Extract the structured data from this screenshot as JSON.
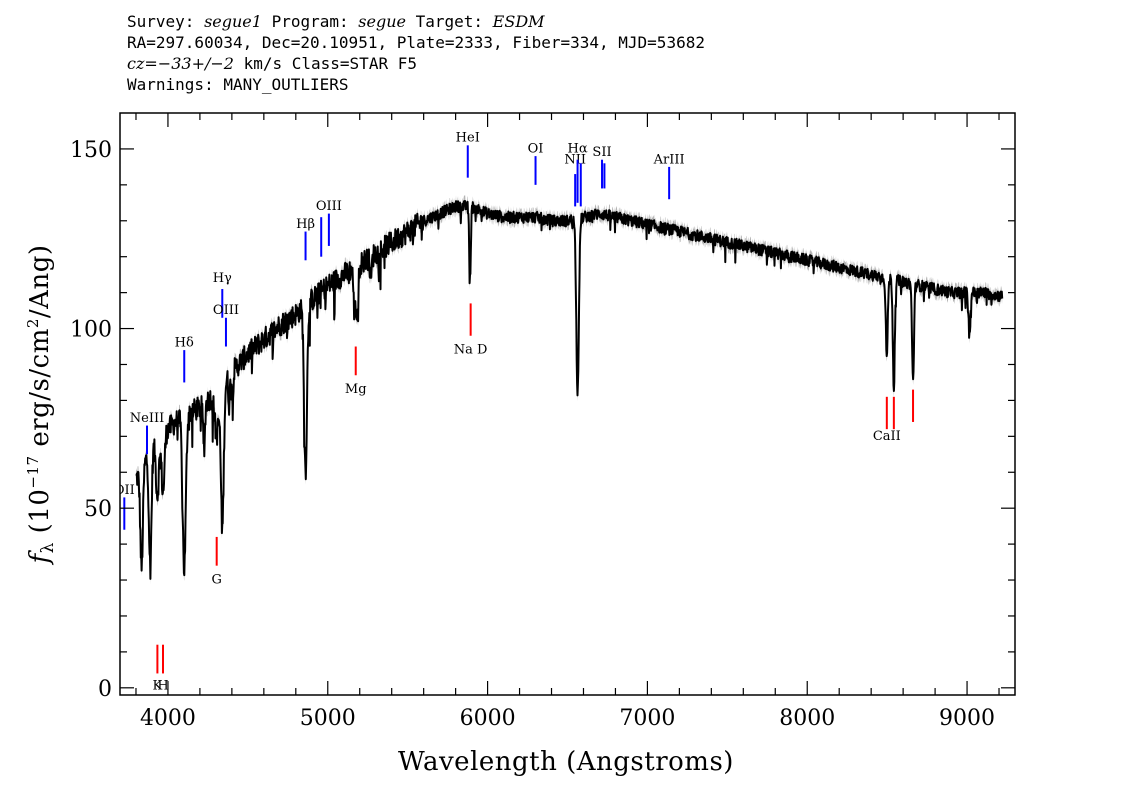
{
  "header": {
    "line1": {
      "survey_label": "Survey: ",
      "survey": "segue1",
      "program_label": " Program: ",
      "program": "segue",
      "target_label": " Target: ",
      "target": "ESDM"
    },
    "line2": "RA=297.60034, Dec=20.10951, Plate=2333, Fiber=334, MJD=53682",
    "line3": {
      "cz_label": "cz=",
      "cz_value": "−33+/−2",
      "rest": " km/s Class=STAR F5"
    },
    "line4": "Warnings: MANY_OUTLIERS"
  },
  "chart_data": {
    "type": "line",
    "xlabel": "Wavelength (Angstroms)",
    "ylabel": "f_λ (10^−17 erg/s/cm^2/Ang)",
    "ylabel_parts": {
      "f": "f",
      "sub": "λ",
      "open": " (10",
      "exp1": "−17",
      "mid": " erg/s/cm",
      "exp2": "2",
      "close": "/Ang)"
    },
    "xlim": [
      3700,
      9300
    ],
    "ylim": [
      -2,
      160
    ],
    "xticks": [
      4000,
      5000,
      6000,
      7000,
      8000,
      9000
    ],
    "xtick_labels": [
      "4000",
      "5000",
      "6000",
      "7000",
      "8000",
      "9000"
    ],
    "yticks": [
      0,
      50,
      100,
      150
    ],
    "ytick_labels": [
      "0",
      "50",
      "100",
      "150"
    ],
    "x_minor_step": 200,
    "y_minor_step": 10,
    "colors": {
      "spectrum": "#000000",
      "error_band": "#b4b4b4",
      "emission": "#0000ff",
      "absorption": "#ff0000"
    },
    "continuum": [
      [
        3800,
        58
      ],
      [
        3900,
        67
      ],
      [
        4000,
        72
      ],
      [
        4100,
        76
      ],
      [
        4200,
        78
      ],
      [
        4300,
        82
      ],
      [
        4400,
        88
      ],
      [
        4500,
        93
      ],
      [
        4600,
        97
      ],
      [
        4700,
        101
      ],
      [
        4800,
        104
      ],
      [
        4900,
        108
      ],
      [
        5000,
        112
      ],
      [
        5100,
        115
      ],
      [
        5200,
        118
      ],
      [
        5300,
        121
      ],
      [
        5400,
        124
      ],
      [
        5500,
        127
      ],
      [
        5600,
        130
      ],
      [
        5700,
        132
      ],
      [
        5800,
        134
      ],
      [
        5900,
        134
      ],
      [
        6000,
        132
      ],
      [
        6100,
        131
      ],
      [
        6200,
        131
      ],
      [
        6300,
        131
      ],
      [
        6400,
        130
      ],
      [
        6500,
        130
      ],
      [
        6600,
        131
      ],
      [
        6700,
        132
      ],
      [
        6800,
        131
      ],
      [
        6900,
        130
      ],
      [
        7000,
        129
      ],
      [
        7100,
        128
      ],
      [
        7200,
        127
      ],
      [
        7300,
        126
      ],
      [
        7400,
        125
      ],
      [
        7500,
        124
      ],
      [
        7600,
        123
      ],
      [
        7700,
        122
      ],
      [
        7800,
        121
      ],
      [
        7900,
        120
      ],
      [
        8000,
        119
      ],
      [
        8100,
        118
      ],
      [
        8200,
        117
      ],
      [
        8300,
        116
      ],
      [
        8400,
        115
      ],
      [
        8500,
        114
      ],
      [
        8600,
        113
      ],
      [
        8700,
        112
      ],
      [
        8800,
        111
      ],
      [
        8900,
        110
      ],
      [
        9000,
        110
      ],
      [
        9100,
        110
      ],
      [
        9220,
        109
      ]
    ],
    "absorption_features": [
      [
        3835,
        28,
        8
      ],
      [
        3889,
        32,
        8
      ],
      [
        3934,
        15,
        9
      ],
      [
        3969,
        16,
        9
      ],
      [
        4102,
        43,
        10
      ],
      [
        4226,
        12,
        6
      ],
      [
        4305,
        12,
        12
      ],
      [
        4340,
        40,
        9
      ],
      [
        4383,
        8,
        5
      ],
      [
        4404,
        6,
        5
      ],
      [
        4861,
        46,
        9
      ],
      [
        5167,
        12,
        6
      ],
      [
        5184,
        14,
        7
      ],
      [
        5270,
        6,
        6
      ],
      [
        5890,
        20,
        5
      ],
      [
        6563,
        48,
        8
      ],
      [
        8498,
        22,
        6
      ],
      [
        8542,
        30,
        6
      ],
      [
        8662,
        27,
        6
      ],
      [
        9015,
        12,
        6
      ]
    ],
    "emission_lines": [
      {
        "label": "OII",
        "x": 3727,
        "y0": 44,
        "y1": 53,
        "label_y": 54
      },
      {
        "label": "NeIII",
        "x": 3869,
        "y0": 65,
        "y1": 73,
        "label_y": 74
      },
      {
        "label": "Hδ",
        "x": 4102,
        "y0": 85,
        "y1": 94,
        "label_y": 95
      },
      {
        "label": "Hγ",
        "x": 4340,
        "y0": 103,
        "y1": 111,
        "label_y": 113
      },
      {
        "label": "OIII",
        "x": 4363,
        "y0": 95,
        "y1": 103,
        "label_y": 104
      },
      {
        "label": "Hβ",
        "x": 4861,
        "y0": 119,
        "y1": 127,
        "label_y": 128
      },
      {
        "label": "OIII",
        "x": 4959,
        "y0": 120,
        "y1": 131,
        "label_y": 0
      },
      {
        "label": "OIII",
        "x": 5007,
        "y0": 123,
        "y1": 132,
        "label_y": 133
      },
      {
        "label": "HeI",
        "x": 5876,
        "y0": 142,
        "y1": 151,
        "label_y": 152
      },
      {
        "label": "OI",
        "x": 6300,
        "y0": 140,
        "y1": 148,
        "label_y": 149
      },
      {
        "label": "NII",
        "x": 6548,
        "y0": 134,
        "y1": 143,
        "label_y": 146
      },
      {
        "label": "Hα",
        "x": 6563,
        "y0": 135,
        "y1": 147,
        "label_y": 149
      },
      {
        "label": "NII",
        "x": 6583,
        "y0": 134,
        "y1": 146,
        "label_y": 0
      },
      {
        "label": "SII",
        "x": 6716,
        "y0": 139,
        "y1": 147,
        "label_y": 148
      },
      {
        "label": "SII",
        "x": 6731,
        "y0": 139,
        "y1": 146,
        "label_y": 0
      },
      {
        "label": "ArIII",
        "x": 7136,
        "y0": 136,
        "y1": 145,
        "label_y": 146
      }
    ],
    "absorption_lines": [
      {
        "label": "K",
        "x": 3934,
        "y0": 4,
        "y1": 12,
        "label_y": -0.5
      },
      {
        "label": "H",
        "x": 3969,
        "y0": 4,
        "y1": 12,
        "label_y": -0.5
      },
      {
        "label": "G",
        "x": 4305,
        "y0": 34,
        "y1": 42,
        "label_y": 29
      },
      {
        "label": "Mg",
        "x": 5175,
        "y0": 87,
        "y1": 95,
        "label_y": 82
      },
      {
        "label": "Na D",
        "x": 5894,
        "y0": 98,
        "y1": 107,
        "label_y": 93
      },
      {
        "label": "CaII",
        "x": 8498,
        "y0": 72,
        "y1": 81,
        "label_y": 69
      },
      {
        "label": "CaII",
        "x": 8542,
        "y0": 72,
        "y1": 81,
        "label_y": 0
      },
      {
        "label": "CaII",
        "x": 8662,
        "y0": 74,
        "y1": 83,
        "label_y": 0
      }
    ]
  }
}
